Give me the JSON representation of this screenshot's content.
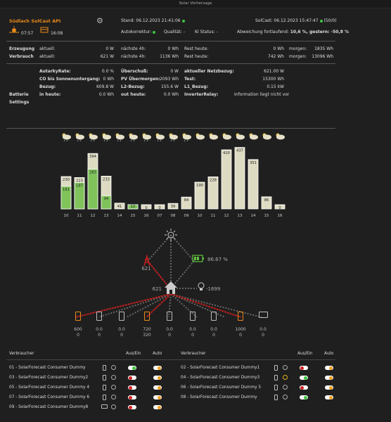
{
  "window": {
    "title": "Solar Vorhersage"
  },
  "header": {
    "app_link": "Südlach SolCast API",
    "sunrise": "07:57",
    "sunset": "16:08",
    "stand": "Stand: 06.12.2023 21:41:06",
    "solcast": "SolCast: 06.12.2023 15:47:47",
    "solcast_count": "(50/0)",
    "autokorrektur": "Autokorrektur:",
    "qualitaet": "Qualität: -",
    "ki_status": "KI Status: -",
    "abweichung_label": "Abweichung fortlaufend:",
    "abweichung_value": "10,6 %, gestern: -50,8 %"
  },
  "grid1": {
    "row1": [
      "Erzeugung",
      "aktuell:",
      "0 W",
      "nächste 4h:",
      "0 Wh",
      "Rest heute:",
      "0 Wh",
      "morgen:",
      "1835 Wh"
    ],
    "row2": [
      "Verbrauch",
      "aktuell:",
      "621 W",
      "nächste 4h:",
      "1136 Wh",
      "Rest heute:",
      "742 Wh",
      "morgen:",
      "13096 Wh"
    ]
  },
  "grid2": {
    "r1": [
      "AutarkyRate:",
      "0.0 %",
      "Überschuß:",
      "0 W",
      "aktueller Netzbezug:",
      "621.00 W"
    ],
    "r2": [
      "CO bis Sonnenuntergang:",
      "0 Wh",
      "PV Übermorgen:",
      "2093 Wh",
      "Test:",
      "15300 Wh"
    ],
    "r3": [
      "Bezug:",
      "609.8 W",
      "L2-Bezug:",
      "155.6 W",
      "L1_Bezug:",
      "0.15 kW"
    ],
    "r4": [
      "Batterie",
      "in heute:",
      "0.0 Wh",
      "out heute:",
      "0.0 Wh",
      "InverterRelay:",
      "Information liegt nicht vor"
    ],
    "r5": [
      "Settings"
    ]
  },
  "chart_data": {
    "type": "bar",
    "categories": [
      "10",
      "11",
      "12",
      "13",
      "14",
      "15",
      "16",
      "07",
      "08",
      "09",
      "10",
      "11",
      "12",
      "13",
      "14",
      "15",
      "16"
    ],
    "series": [
      {
        "values": [
          230,
          223,
          394,
          233,
          41,
          25,
          0,
          0,
          39,
          84,
          190,
          228,
          420,
          437,
          351,
          86,
          0
        ]
      },
      {
        "values": [
          161,
          187,
          283,
          94,
          null,
          12,
          null,
          null,
          null,
          null,
          null,
          null,
          null,
          null,
          null,
          null,
          null
        ]
      }
    ],
    "labels_main": [
      "230",
      "223",
      "394",
      "233",
      "41",
      "25",
      "0",
      "0",
      "39",
      "84",
      "190",
      "228",
      "420",
      "437",
      "351",
      "86",
      "0"
    ],
    "labels_inner": [
      "161",
      "187",
      "283",
      "94",
      "",
      "12",
      "",
      "",
      "",
      "",
      "",
      "",
      "",
      "",
      "",
      "",
      ""
    ]
  },
  "flow": {
    "grid_value": "621",
    "battery_value": "86.67 %",
    "house_value": "621",
    "load_value": "-1699",
    "devices": [
      {
        "top": "600",
        "bottom": "0"
      },
      {
        "top": "0.0",
        "bottom": "0"
      },
      {
        "top": "0.0",
        "bottom": "0"
      },
      {
        "top": "720",
        "bottom": "320"
      },
      {
        "top": "0.0",
        "bottom": "0"
      },
      {
        "top": "0.0",
        "bottom": "0"
      },
      {
        "top": "0.0",
        "bottom": "0"
      },
      {
        "top": "1000",
        "bottom": "0"
      },
      {
        "top": "0.0",
        "bottom": "0"
      }
    ]
  },
  "consumers": {
    "h_verbraucher": "Verbraucher",
    "h_ausein": "Aus/Ein",
    "h_auto": "Auto",
    "left": [
      "01 - SolarForecast Consumer Dummy",
      "03 - SolarForecast Consumer Dummy2",
      "05 - SolarForecast Consumer Dummy 4",
      "07 - SolarForecast Consumer Dummy 6",
      "09 - SolarForecast Consumer Dummy8"
    ],
    "right": [
      "02 - SolarForecast Consumer Dummy1",
      "04 - SolarForecast Consumer Dummy3",
      "06 - SolarForecast Consumer Dummy 5",
      "08 - SolarForecast Consumer Dummy"
    ]
  },
  "colors": {
    "accent": "#e88a1a",
    "bar_pv": "#dedbc3",
    "bar_green": "#7fc35a",
    "flow_red": "#c0201f"
  }
}
